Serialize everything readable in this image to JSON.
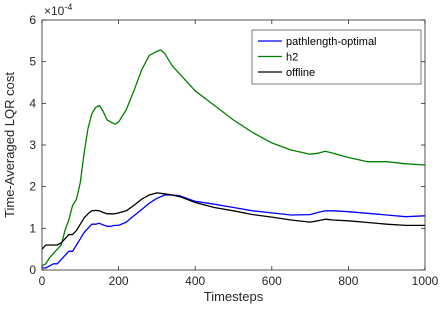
{
  "chart_data": {
    "type": "line",
    "xlabel": "Timesteps",
    "ylabel": "Time-Averaged LQR cost",
    "y_multiplier_prefix": "×10",
    "y_multiplier_exponent": "-4",
    "xlim": [
      0,
      1000
    ],
    "ylim": [
      0,
      6
    ],
    "x_ticks": [
      0,
      200,
      400,
      600,
      800,
      1000
    ],
    "y_ticks": [
      0,
      1,
      2,
      3,
      4,
      5,
      6
    ],
    "grid": false,
    "legend_position": "top-right",
    "series": [
      {
        "name": "pathlength-optimal",
        "color": "#0000ff",
        "x": [
          0,
          10,
          20,
          30,
          40,
          50,
          60,
          70,
          80,
          90,
          100,
          110,
          120,
          130,
          140,
          150,
          160,
          170,
          180,
          190,
          200,
          220,
          240,
          260,
          280,
          300,
          320,
          340,
          360,
          400,
          450,
          500,
          550,
          600,
          650,
          700,
          720,
          740,
          760,
          800,
          850,
          900,
          950,
          1000
        ],
        "y": [
          0.05,
          0.05,
          0.1,
          0.15,
          0.15,
          0.25,
          0.35,
          0.45,
          0.45,
          0.6,
          0.75,
          0.9,
          1.0,
          1.1,
          1.1,
          1.12,
          1.08,
          1.05,
          1.05,
          1.07,
          1.07,
          1.15,
          1.3,
          1.45,
          1.6,
          1.72,
          1.8,
          1.8,
          1.78,
          1.65,
          1.58,
          1.5,
          1.42,
          1.37,
          1.32,
          1.33,
          1.38,
          1.42,
          1.42,
          1.4,
          1.36,
          1.32,
          1.28,
          1.3
        ]
      },
      {
        "name": "h2",
        "color": "#008000",
        "x": [
          0,
          10,
          20,
          30,
          40,
          50,
          60,
          70,
          80,
          90,
          100,
          110,
          120,
          130,
          140,
          150,
          160,
          170,
          180,
          190,
          200,
          210,
          220,
          240,
          260,
          280,
          300,
          310,
          320,
          330,
          340,
          360,
          400,
          450,
          500,
          550,
          600,
          650,
          700,
          720,
          740,
          760,
          800,
          850,
          900,
          950,
          1000
        ],
        "y": [
          0.1,
          0.15,
          0.3,
          0.4,
          0.5,
          0.6,
          0.95,
          1.2,
          1.55,
          1.7,
          2.1,
          2.8,
          3.4,
          3.75,
          3.9,
          3.95,
          3.8,
          3.6,
          3.55,
          3.5,
          3.55,
          3.7,
          3.85,
          4.3,
          4.8,
          5.15,
          5.25,
          5.28,
          5.2,
          5.05,
          4.9,
          4.7,
          4.3,
          3.95,
          3.6,
          3.3,
          3.05,
          2.88,
          2.78,
          2.8,
          2.85,
          2.8,
          2.7,
          2.6,
          2.6,
          2.55,
          2.52
        ]
      },
      {
        "name": "offline",
        "color": "#000000",
        "x": [
          0,
          10,
          20,
          30,
          40,
          50,
          60,
          70,
          80,
          90,
          100,
          110,
          120,
          130,
          140,
          150,
          160,
          170,
          180,
          190,
          200,
          220,
          240,
          260,
          280,
          300,
          320,
          340,
          360,
          400,
          450,
          500,
          550,
          600,
          650,
          700,
          720,
          740,
          760,
          800,
          850,
          900,
          950,
          1000
        ],
        "y": [
          0.5,
          0.6,
          0.6,
          0.6,
          0.6,
          0.65,
          0.75,
          0.85,
          0.85,
          0.95,
          1.1,
          1.25,
          1.35,
          1.42,
          1.43,
          1.42,
          1.38,
          1.35,
          1.35,
          1.35,
          1.37,
          1.42,
          1.55,
          1.7,
          1.8,
          1.85,
          1.83,
          1.8,
          1.76,
          1.62,
          1.5,
          1.42,
          1.33,
          1.27,
          1.2,
          1.15,
          1.18,
          1.22,
          1.2,
          1.18,
          1.14,
          1.1,
          1.07,
          1.07
        ]
      }
    ]
  }
}
